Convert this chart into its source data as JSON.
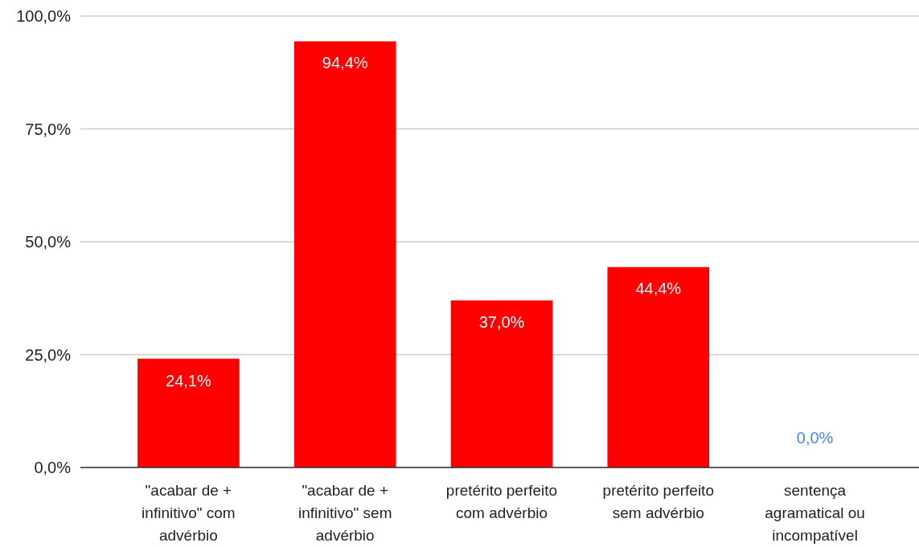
{
  "chart_data": {
    "type": "bar",
    "categories": [
      "\"acabar de + infinitivo\" com advérbio",
      "\"acabar de + infinitivo\" sem advérbio",
      "pretérito perfeito com advérbio",
      "pretérito perfeito sem advérbio",
      "sentença agramatical ou incompatível"
    ],
    "values": [
      24.1,
      94.4,
      37.0,
      44.4,
      0.0
    ],
    "color": "#ff0000",
    "value_labels": [
      "24,1%",
      "94,4%",
      "37,0%",
      "44,4%",
      "0,0%"
    ],
    "ylim": [
      0,
      100
    ],
    "yticks": [
      {
        "value": 0,
        "label": "0,0%"
      },
      {
        "value": 25,
        "label": "25,0%"
      },
      {
        "value": 50,
        "label": "50,0%"
      },
      {
        "value": 75,
        "label": "75,0%"
      },
      {
        "value": 100,
        "label": "100,0%"
      }
    ],
    "grid": "y"
  }
}
